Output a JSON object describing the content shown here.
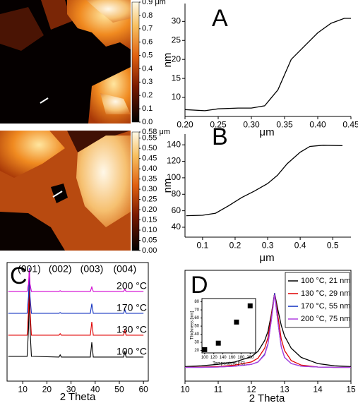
{
  "chart_data": [
    {
      "type": "colorbar",
      "ylim": [
        0,
        0.9
      ],
      "yticks": [
        {
          "value": 0,
          "label": "0.0"
        },
        0.1,
        0.2,
        0.3,
        0.4,
        0.5,
        0.6,
        0.7,
        0.8,
        {
          "value": 0.9,
          "label": "0.9 μm"
        }
      ]
    },
    {
      "type": "line",
      "label": "A",
      "xlabel": "μm",
      "ylabel": "nm",
      "color": "#000000",
      "x": [
        0.2,
        0.23,
        0.25,
        0.28,
        0.3,
        0.32,
        0.34,
        0.36,
        0.38,
        0.4,
        0.42,
        0.44,
        0.45
      ],
      "values": [
        6.8,
        6.5,
        7,
        7.2,
        7.2,
        7.8,
        12,
        20,
        23.5,
        27,
        29.5,
        30.8,
        30.8
      ],
      "xlim": [
        0.2,
        0.45
      ],
      "ylim": [
        5,
        34.7
      ],
      "xticks": [
        {
          "value": 0.2,
          "label": "0.20"
        },
        0.25,
        {
          "value": 0.3,
          "label": "0.30"
        },
        0.35,
        {
          "value": 0.4,
          "label": "0.40"
        },
        0.45
      ],
      "yticks": [
        10,
        15,
        20,
        25,
        30
      ]
    },
    {
      "type": "colorbar",
      "ylim": [
        0,
        0.58
      ],
      "yticks": [
        {
          "value": 0,
          "label": "0.00"
        },
        0.05,
        {
          "value": 0.1,
          "label": "0.10"
        },
        0.15,
        {
          "value": 0.2,
          "label": "0.20"
        },
        0.25,
        {
          "value": 0.3,
          "label": "0.30"
        },
        0.35,
        {
          "value": 0.4,
          "label": "0.40"
        },
        0.45,
        {
          "value": 0.5,
          "label": "0.50"
        },
        0.55,
        {
          "value": 0.58,
          "label": "0.58 μm"
        }
      ]
    },
    {
      "type": "line",
      "label": "B",
      "xlabel": "μm",
      "ylabel": "nm",
      "color": "#000000",
      "x": [
        0.05,
        0.1,
        0.14,
        0.18,
        0.22,
        0.26,
        0.3,
        0.33,
        0.36,
        0.4,
        0.43,
        0.47,
        0.53
      ],
      "values": [
        54,
        54.5,
        57,
        66,
        76,
        84,
        93,
        103,
        117,
        131,
        138,
        139.5,
        139
      ],
      "xlim": [
        0.046,
        0.556
      ],
      "ylim": [
        28,
        153
      ],
      "xticks": [
        0.1,
        0.2,
        0.3,
        0.4,
        0.5
      ],
      "yticks": [
        40,
        60,
        80,
        100,
        120,
        140
      ]
    },
    {
      "type": "waterfall",
      "label": "C",
      "xlabel": "2 Theta",
      "x": [
        4,
        11.8,
        12.4,
        12.7,
        13.0,
        13.6,
        25,
        25.5,
        26,
        38,
        38.6,
        39.2,
        51.8,
        52.3,
        52.8,
        60
      ],
      "series": [
        {
          "name": "100 °C",
          "color": "#000000",
          "values": [
            3,
            3,
            40,
            98,
            40,
            3,
            2,
            5,
            2,
            2,
            22,
            2,
            2,
            10,
            2,
            2
          ]
        },
        {
          "name": "130 °C",
          "color": "#e00000",
          "values": [
            2,
            2,
            35,
            90,
            35,
            2,
            2,
            4,
            2,
            2,
            20,
            2,
            2,
            9,
            2,
            2
          ]
        },
        {
          "name": "170 °C",
          "color": "#1030c0",
          "values": [
            2,
            2,
            25,
            63,
            25,
            2,
            2,
            3,
            2,
            2,
            15,
            2,
            2,
            7,
            2,
            2
          ]
        },
        {
          "name": "200 °C",
          "color": "#d000d0",
          "values": [
            2,
            2,
            12,
            32,
            12,
            2,
            2,
            3,
            2,
            2,
            8,
            2,
            2,
            5,
            2,
            2
          ]
        }
      ],
      "annotations": [
        {
          "text": "(001)",
          "x": 12.7
        },
        {
          "text": "(002)",
          "x": 25.5
        },
        {
          "text": "(003)",
          "x": 38.6
        },
        {
          "text": "(004)",
          "x": 52.3
        }
      ],
      "xlim": [
        3.5,
        62
      ],
      "ylim": [
        0,
        160
      ],
      "xticks": [
        10,
        20,
        30,
        40,
        50,
        60
      ]
    },
    {
      "type": "line",
      "label": "D",
      "xlabel": "2 Theta",
      "legend": "upper right",
      "x": [
        10,
        10.5,
        11,
        11.5,
        12,
        12.2,
        12.4,
        12.5,
        12.6,
        12.7,
        12.8,
        12.9,
        13.0,
        13.2,
        13.5,
        14,
        14.5,
        15
      ],
      "series": [
        {
          "name": "100 °C, 21 nm",
          "color": "#000000",
          "values": [
            0.04,
            0.05,
            0.07,
            0.1,
            0.17,
            0.24,
            0.38,
            0.5,
            0.72,
            1,
            0.78,
            0.58,
            0.44,
            0.28,
            0.16,
            0.08,
            0.05,
            0.04
          ]
        },
        {
          "name": "130 °C, 29 nm",
          "color": "#e00000",
          "values": [
            0.03,
            0.035,
            0.04,
            0.06,
            0.1,
            0.15,
            0.28,
            0.42,
            0.7,
            1,
            0.7,
            0.4,
            0.25,
            0.12,
            0.06,
            0.035,
            0.03,
            0.03
          ]
        },
        {
          "name": "170 °C, 55 nm",
          "color": "#1030c0",
          "values": [
            0.03,
            0.03,
            0.035,
            0.045,
            0.07,
            0.1,
            0.2,
            0.34,
            0.65,
            1,
            0.62,
            0.3,
            0.16,
            0.08,
            0.045,
            0.035,
            0.03,
            0.03
          ]
        },
        {
          "name": "200 °C, 75 nm",
          "color": "#b040e0",
          "values": [
            0.03,
            0.03,
            0.035,
            0.045,
            0.07,
            0.1,
            0.19,
            0.33,
            0.64,
            0.98,
            0.62,
            0.3,
            0.16,
            0.08,
            0.045,
            0.035,
            0.03,
            0.03
          ]
        }
      ],
      "xlim": [
        10,
        15
      ],
      "ylim": [
        -0.15,
        1.3
      ],
      "xticks": [
        10,
        11,
        12,
        13,
        14,
        15
      ]
    },
    {
      "type": "scatter",
      "xlabel": "Temperature [°C]",
      "ylabel": "Thickness [nm]",
      "color": "#000000",
      "x": [
        100,
        130,
        170,
        200
      ],
      "values": [
        21,
        29,
        55,
        75
      ],
      "xlim": [
        94,
        212
      ],
      "ylim": [
        17,
        84
      ],
      "xticks": [
        100,
        120,
        140,
        160,
        180,
        200
      ],
      "yticks": [
        20,
        30,
        40,
        50,
        60,
        70,
        80
      ]
    }
  ]
}
